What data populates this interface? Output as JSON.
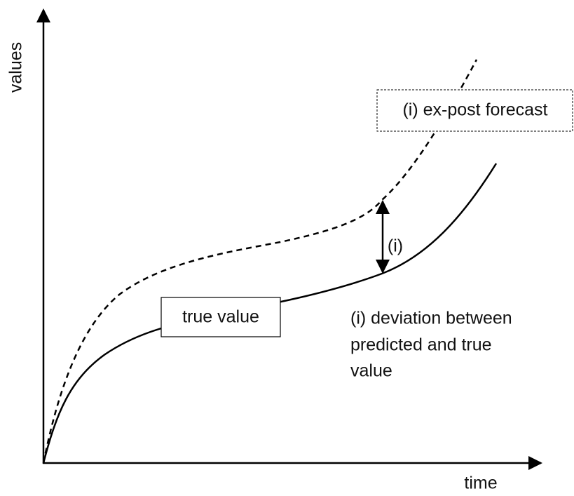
{
  "axes": {
    "y_label": "values",
    "x_label": "time"
  },
  "annotations": {
    "forecast": "(i) ex-post forecast",
    "true_value": "true value",
    "deviation_marker": "(i)",
    "deviation_note": [
      "(i) deviation between",
      "predicted and true",
      "value"
    ]
  }
}
